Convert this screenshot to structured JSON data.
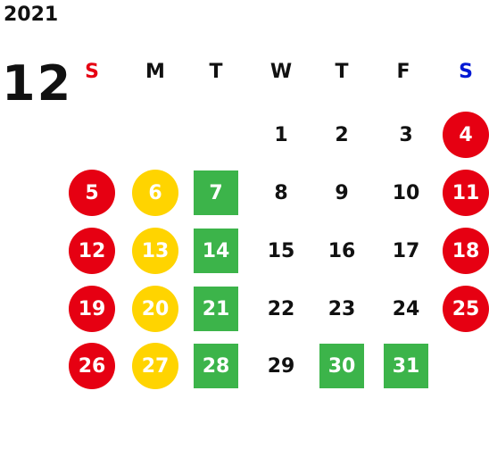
{
  "year": "2021",
  "month": "12",
  "colors": {
    "sunday_header": "#e60012",
    "saturday_header": "#0019d4",
    "red": "#e60012",
    "yellow": "#ffd400",
    "green": "#3cb44a",
    "text": "#111111"
  },
  "weekdays": [
    "S",
    "M",
    "T",
    "W",
    "T",
    "F",
    "S"
  ],
  "weeks": [
    [
      {
        "label": "",
        "style": "plain"
      },
      {
        "label": "",
        "style": "plain"
      },
      {
        "label": "",
        "style": "plain"
      },
      {
        "label": "1",
        "style": "plain"
      },
      {
        "label": "2",
        "style": "plain"
      },
      {
        "label": "3",
        "style": "plain"
      },
      {
        "label": "4",
        "style": "red-circle"
      }
    ],
    [
      {
        "label": "5",
        "style": "red-circle"
      },
      {
        "label": "6",
        "style": "yellow-circle"
      },
      {
        "label": "7",
        "style": "green-square"
      },
      {
        "label": "8",
        "style": "plain"
      },
      {
        "label": "9",
        "style": "plain"
      },
      {
        "label": "10",
        "style": "plain"
      },
      {
        "label": "11",
        "style": "red-circle"
      }
    ],
    [
      {
        "label": "12",
        "style": "red-circle"
      },
      {
        "label": "13",
        "style": "yellow-circle"
      },
      {
        "label": "14",
        "style": "green-square"
      },
      {
        "label": "15",
        "style": "plain"
      },
      {
        "label": "16",
        "style": "plain"
      },
      {
        "label": "17",
        "style": "plain"
      },
      {
        "label": "18",
        "style": "red-circle"
      }
    ],
    [
      {
        "label": "19",
        "style": "red-circle"
      },
      {
        "label": "20",
        "style": "yellow-circle"
      },
      {
        "label": "21",
        "style": "green-square"
      },
      {
        "label": "22",
        "style": "plain"
      },
      {
        "label": "23",
        "style": "plain"
      },
      {
        "label": "24",
        "style": "plain"
      },
      {
        "label": "25",
        "style": "red-circle"
      }
    ],
    [
      {
        "label": "26",
        "style": "red-circle"
      },
      {
        "label": "27",
        "style": "yellow-circle"
      },
      {
        "label": "28",
        "style": "green-square"
      },
      {
        "label": "29",
        "style": "plain"
      },
      {
        "label": "30",
        "style": "green-square"
      },
      {
        "label": "31",
        "style": "green-square"
      },
      {
        "label": "",
        "style": "plain"
      }
    ]
  ]
}
